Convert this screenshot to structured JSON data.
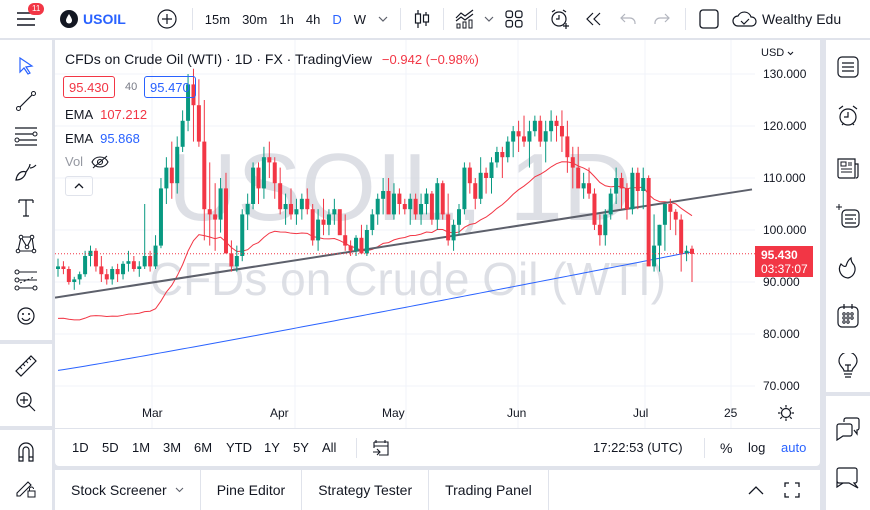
{
  "topbar": {
    "notification_count": "11",
    "symbol": "USOIL",
    "intervals": [
      "15m",
      "30m",
      "1h",
      "4h",
      "D",
      "W"
    ],
    "active_interval": "D",
    "account": "Wealthy Edu"
  },
  "legend": {
    "title": "CFDs on Crude Oil (WTI) · 1D · FX · TradingView",
    "change": "−0.942 (−0.98%)",
    "bid": "95.430",
    "spread": "40",
    "ask": "95.470",
    "ema1_label": "EMA",
    "ema1_value": "107.212",
    "ema2_label": "EMA",
    "ema2_value": "95.868",
    "vol_label": "Vol"
  },
  "watermark": {
    "symbol": "USOIL, 1D",
    "description": "CFDs on Crude Oil (WTI)"
  },
  "price_axis": {
    "currency": "USD",
    "ticks": [
      "130.000",
      "120.000",
      "110.000",
      "100.000",
      "90.000",
      "80.000",
      "70.000"
    ],
    "last_price": "95.430",
    "countdown": "03:37:07"
  },
  "time_axis": {
    "labels": [
      "Mar",
      "Apr",
      "May",
      "Jun",
      "Jul",
      "25"
    ]
  },
  "range_bar": {
    "ranges": [
      "1D",
      "5D",
      "1M",
      "3M",
      "6M",
      "YTD",
      "1Y",
      "5Y",
      "All"
    ],
    "clock": "17:22:53 (UTC)",
    "percent": "%",
    "log": "log",
    "auto": "auto"
  },
  "bottom_tabs": [
    "Stock Screener",
    "Pine Editor",
    "Strategy Tester",
    "Trading Panel"
  ],
  "colors": {
    "up": "#089981",
    "down": "#f23645",
    "ema_fast": "#f23645",
    "ema_slow": "#2962ff",
    "trendline": "#5d606b",
    "accent": "#2962ff"
  },
  "chart_data": {
    "type": "candlestick",
    "title": "CFDs on Crude Oil (WTI) · 1D",
    "x_labels": [
      "Mar",
      "Apr",
      "May",
      "Jun",
      "Jul",
      "25"
    ],
    "ylim": [
      66,
      133
    ],
    "y_ticks": [
      70,
      80,
      90,
      100,
      110,
      120,
      130
    ],
    "last_price": 95.43,
    "ohlc": [
      [
        92.5,
        94.5,
        91,
        93
      ],
      [
        93,
        94,
        91.5,
        92.5
      ],
      [
        92.5,
        93,
        89.5,
        90
      ],
      [
        90,
        91,
        88.5,
        90.5
      ],
      [
        90.5,
        92,
        89.5,
        91.5
      ],
      [
        91.5,
        96,
        91,
        95
      ],
      [
        95,
        97,
        93,
        96
      ],
      [
        96,
        96.5,
        92,
        93
      ],
      [
        93,
        95,
        90,
        91.5
      ],
      [
        91.5,
        92.5,
        89.5,
        90.5
      ],
      [
        90.5,
        93,
        89.5,
        92.5
      ],
      [
        92.5,
        93.5,
        90,
        91.5
      ],
      [
        91.5,
        94,
        90.5,
        93.5
      ],
      [
        93.5,
        96,
        92,
        94
      ],
      [
        94,
        95,
        92,
        92.5
      ],
      [
        92.5,
        94,
        91,
        93
      ],
      [
        93,
        105,
        92.5,
        95
      ],
      [
        95,
        96,
        92,
        93
      ],
      [
        93,
        99,
        92.5,
        97
      ],
      [
        97,
        110,
        96.5,
        108
      ],
      [
        108,
        114,
        105,
        112
      ],
      [
        112,
        117,
        106,
        109
      ],
      [
        109,
        118,
        107,
        116
      ],
      [
        116,
        123,
        115,
        121
      ],
      [
        121,
        130,
        119,
        128
      ],
      [
        128,
        131,
        117,
        124
      ],
      [
        124,
        129,
        116,
        117
      ],
      [
        117,
        125,
        98,
        104
      ],
      [
        104,
        113,
        97,
        103
      ],
      [
        103,
        109,
        96,
        102
      ],
      [
        102,
        110,
        99.5,
        108
      ],
      [
        108,
        111,
        96,
        95.5
      ],
      [
        95.5,
        98,
        92,
        93
      ],
      [
        93,
        97,
        92,
        95
      ],
      [
        95,
        104,
        94,
        103
      ],
      [
        103,
        107,
        100,
        105
      ],
      [
        105,
        113,
        104,
        112
      ],
      [
        112,
        113,
        105,
        108
      ],
      [
        108,
        116,
        106,
        114
      ],
      [
        114,
        117,
        110,
        113
      ],
      [
        113,
        114,
        106,
        109
      ],
      [
        109,
        112,
        103,
        104
      ],
      [
        104,
        107,
        101,
        105
      ],
      [
        105,
        108,
        102,
        103
      ],
      [
        103,
        106,
        101,
        104
      ],
      [
        104,
        107,
        102,
        106
      ],
      [
        106,
        108,
        103,
        104
      ],
      [
        104,
        105,
        97,
        98
      ],
      [
        98,
        104,
        96,
        102
      ],
      [
        102,
        106,
        99,
        101
      ],
      [
        101,
        104,
        99,
        103
      ],
      [
        103,
        106,
        101,
        104
      ],
      [
        104,
        103,
        100,
        99
      ],
      [
        99,
        103,
        96,
        97
      ],
      [
        97,
        98,
        95,
        96
      ],
      [
        96,
        99,
        95,
        98.5
      ],
      [
        98.5,
        101,
        96,
        95.5
      ],
      [
        95.5,
        101,
        95,
        100
      ],
      [
        100,
        104,
        99,
        103
      ],
      [
        103,
        107,
        101,
        106
      ],
      [
        106,
        110,
        103,
        107.5
      ],
      [
        107.5,
        110,
        104,
        103
      ],
      [
        103,
        109,
        102,
        107
      ],
      [
        107,
        108,
        103,
        105
      ],
      [
        105,
        106,
        103,
        104
      ],
      [
        104,
        107,
        101,
        106
      ],
      [
        106,
        107,
        102,
        103
      ],
      [
        103,
        107,
        101,
        105
      ],
      [
        105,
        108,
        103,
        107
      ],
      [
        107,
        107.5,
        101,
        102
      ],
      [
        102,
        110,
        100,
        109
      ],
      [
        109,
        109.5,
        102,
        103
      ],
      [
        103,
        107,
        97,
        98
      ],
      [
        98,
        102,
        96,
        101
      ],
      [
        101,
        105,
        99,
        104
      ],
      [
        104,
        113,
        103,
        112
      ],
      [
        112,
        113,
        107,
        109
      ],
      [
        109,
        110,
        104,
        106
      ],
      [
        106,
        114,
        105,
        111
      ],
      [
        111,
        112,
        107,
        110
      ],
      [
        110,
        114,
        107,
        113
      ],
      [
        113,
        116,
        112,
        115
      ],
      [
        115,
        116,
        110,
        114
      ],
      [
        114,
        118,
        113,
        117
      ],
      [
        117,
        120,
        114,
        119
      ],
      [
        119,
        121,
        115,
        118
      ],
      [
        118,
        122,
        116,
        117
      ],
      [
        117,
        121,
        112,
        119
      ],
      [
        119,
        122,
        118,
        121
      ],
      [
        121,
        122,
        116,
        117
      ],
      [
        117,
        121,
        113,
        119
      ],
      [
        119,
        123,
        117,
        121
      ],
      [
        121,
        122,
        117,
        120
      ],
      [
        120,
        123,
        115,
        118
      ],
      [
        118,
        121,
        111,
        114
      ],
      [
        114,
        116,
        108,
        112
      ],
      [
        112,
        116,
        109,
        108
      ],
      [
        108,
        111,
        106,
        109
      ],
      [
        109,
        112,
        106,
        107
      ],
      [
        107,
        108,
        100,
        101
      ],
      [
        101,
        103,
        97,
        99
      ],
      [
        99,
        104,
        97,
        103
      ],
      [
        103,
        108,
        102,
        107
      ],
      [
        107,
        112,
        105,
        110
      ],
      [
        110,
        111,
        104,
        108
      ],
      [
        108,
        109,
        102,
        104
      ],
      [
        104,
        112,
        103,
        111
      ],
      [
        111,
        112,
        104,
        107.5
      ],
      [
        107.5,
        112,
        104,
        110
      ],
      [
        110,
        110.5,
        102,
        93
      ],
      [
        93,
        103,
        92,
        97
      ],
      [
        97,
        101,
        92,
        101
      ],
      [
        101,
        104,
        96,
        105
      ],
      [
        105,
        106,
        100,
        103.5
      ],
      [
        103.5,
        104,
        99,
        102
      ],
      [
        102,
        103,
        92,
        95.5
      ],
      [
        95.5,
        97,
        94,
        96
      ],
      [
        96.4,
        97,
        90,
        95.4
      ]
    ],
    "ema_fast_label": "EMA 107.212",
    "ema_slow_label": "EMA 95.868",
    "trendline": {
      "from": [
        0,
        87
      ],
      "to": [
        130,
        107.5
      ]
    }
  }
}
